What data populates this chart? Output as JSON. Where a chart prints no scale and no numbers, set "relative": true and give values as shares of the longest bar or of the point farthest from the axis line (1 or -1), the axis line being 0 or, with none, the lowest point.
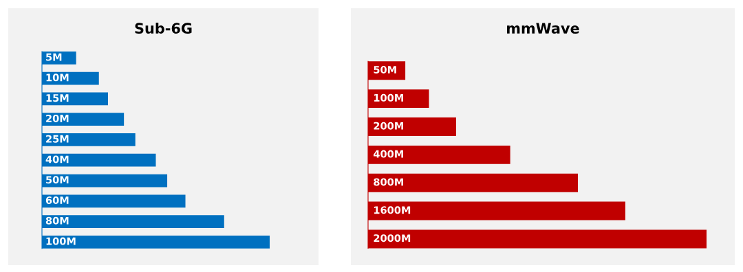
{
  "chart_data": [
    {
      "type": "bar",
      "orientation": "horizontal",
      "relative": true,
      "title": "Sub-6G",
      "categories": [
        "5M",
        "10M",
        "15M",
        "20M",
        "25M",
        "40M",
        "50M",
        "60M",
        "80M",
        "100M"
      ],
      "values": [
        0.15,
        0.25,
        0.29,
        0.36,
        0.41,
        0.5,
        0.55,
        0.63,
        0.8,
        1
      ],
      "color": "#0070c0"
    },
    {
      "type": "bar",
      "orientation": "horizontal",
      "relative": true,
      "title": "mmWave",
      "categories": [
        "50M",
        "100M",
        "200M",
        "400M",
        "800M",
        "1600M",
        "2000M"
      ],
      "values": [
        0.11,
        0.18,
        0.26,
        0.42,
        0.62,
        0.76,
        1
      ],
      "color": "#c00000"
    }
  ]
}
